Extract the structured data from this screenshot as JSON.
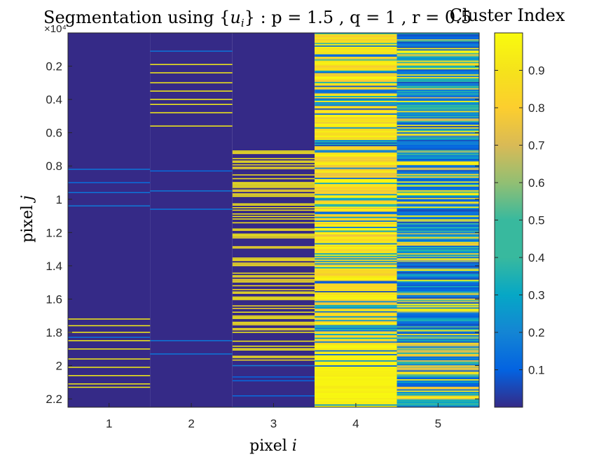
{
  "chart_data": {
    "type": "heatmap",
    "title": "Segmentation using {u_i} : p = 1.5 , q = 1 , r = 0.5",
    "title_parts": {
      "pre": "Segmentation using {",
      "var": "u",
      "sub": "i",
      "post": "} : p = 1.5 , q = 1 , r = 0.5"
    },
    "xlabel_parts": {
      "text": "pixel",
      "var": "i"
    },
    "ylabel_parts": {
      "text": "pixel",
      "var": "j"
    },
    "x_ticks": [
      1,
      2,
      3,
      4,
      5
    ],
    "x_tick_labels": [
      "1",
      "2",
      "3",
      "4",
      "5"
    ],
    "y_tick_values": [
      2000,
      4000,
      6000,
      8000,
      10000,
      12000,
      14000,
      16000,
      18000,
      20000,
      22000
    ],
    "y_tick_labels": [
      "0.2",
      "0.4",
      "0.6",
      "0.8",
      "1",
      "1.2",
      "1.4",
      "1.6",
      "1.8",
      "2",
      "2.2"
    ],
    "y_exponent_label": "×10⁴",
    "xlim": [
      0.5,
      5.5
    ],
    "ylim": [
      1,
      22500
    ],
    "y_reversed": true,
    "colorbar": {
      "title": "Cluster Index",
      "colormap": "parula",
      "range": [
        0,
        1
      ],
      "ticks": [
        "0.1",
        "0.2",
        "0.3",
        "0.4",
        "0.5",
        "0.6",
        "0.7",
        "0.8",
        "0.9"
      ],
      "tick_values": [
        0.1,
        0.2,
        0.3,
        0.4,
        0.5,
        0.6,
        0.7,
        0.8,
        0.9
      ]
    },
    "columns": [
      {
        "x": 1,
        "base": 0,
        "bright_rows": [
          17200,
          17600,
          18000,
          18500,
          19000,
          19600,
          20100,
          20600,
          21100,
          21300
        ],
        "faint_rows": [
          8200,
          9000,
          9600,
          10400,
          18300
        ]
      },
      {
        "x": 2,
        "base": 0,
        "bright_rows": [
          1900,
          2400,
          3000,
          3500,
          4000,
          4300,
          4800,
          5600
        ],
        "faint_rows": [
          1100,
          8300,
          9500,
          10600,
          18500,
          19300
        ]
      },
      {
        "x": 3,
        "base": 0,
        "bright_range": [
          7100,
          20000
        ],
        "bright_fraction": 0.45
      },
      {
        "x": 4,
        "base": 0.9,
        "dark_fraction": 0.3,
        "dense_bright_from": 18700
      },
      {
        "x": 5,
        "base": 0.15,
        "note": "mixed"
      }
    ]
  }
}
